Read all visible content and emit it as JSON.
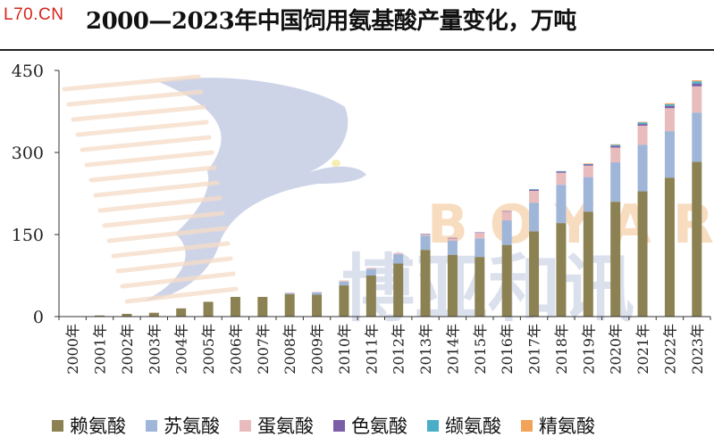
{
  "brand": "L70.CN",
  "title": "2000—2023年中国饲用氨基酸产量变化，万吨",
  "watermark": {
    "latin": "BOYAR",
    "chinese": "博亚和讯"
  },
  "colors": {
    "lysine": "#8b8152",
    "threonine": "#9fb6d9",
    "methionine": "#e8bcbc",
    "tryptophan": "#7b5ea6",
    "valine": "#4aaec8",
    "arginine": "#f2a35a",
    "watermark_bird": "#c6cde4",
    "watermark_text": "#f8dcc0",
    "watermark_cn": "#cfd6e8"
  },
  "chart_data": {
    "type": "bar",
    "stacked": true,
    "title": "2000—2023年中国饲用氨基酸产量变化，万吨",
    "xlabel": "",
    "ylabel": "",
    "ylim": [
      0,
      450
    ],
    "yticks": [
      "0",
      "150",
      "300",
      "450"
    ],
    "grid": false,
    "legend_position": "bottom",
    "categories": [
      "2000年",
      "2001年",
      "2002年",
      "2003年",
      "2004年",
      "2005年",
      "2006年",
      "2007年",
      "2008年",
      "2009年",
      "2010年",
      "2011年",
      "2012年",
      "2013年",
      "2014年",
      "2015年",
      "2016年",
      "2017年",
      "2018年",
      "2019年",
      "2020年",
      "2021年",
      "2022年",
      "2023年"
    ],
    "series": [
      {
        "name": "赖氨酸",
        "key": "lysine",
        "values": [
          0.5,
          2,
          5,
          7,
          15,
          27,
          36,
          36,
          41,
          40,
          57,
          75,
          97,
          122,
          113,
          109,
          131,
          156,
          171,
          192,
          210,
          229,
          254,
          283
        ]
      },
      {
        "name": "苏氨酸",
        "key": "threonine",
        "values": [
          0,
          0,
          0,
          0,
          0,
          0,
          0,
          0,
          2,
          4,
          7,
          12,
          17,
          26,
          26,
          34,
          45,
          52,
          70,
          63,
          72,
          85,
          85,
          90
        ]
      },
      {
        "name": "蛋氨酸",
        "key": "methionine",
        "values": [
          0,
          0,
          0,
          0,
          0,
          0,
          0,
          0,
          1,
          1,
          2,
          2,
          2,
          2,
          4,
          10,
          16,
          22,
          22,
          21,
          27,
          35,
          42,
          48
        ]
      },
      {
        "name": "色氨酸",
        "key": "tryptophan",
        "values": [
          0,
          0,
          0,
          0,
          0,
          0,
          0,
          0,
          0,
          0,
          0,
          0,
          0,
          1,
          1,
          1,
          1,
          2,
          2,
          2,
          3,
          3,
          4,
          5
        ]
      },
      {
        "name": "缬氨酸",
        "key": "valine",
        "values": [
          0,
          0,
          0,
          0,
          0,
          0,
          0,
          0,
          0,
          0,
          0,
          0,
          0,
          0,
          0,
          0,
          0,
          1,
          1,
          1,
          2,
          3,
          3,
          4
        ]
      },
      {
        "name": "精氨酸",
        "key": "arginine",
        "values": [
          0,
          0,
          0,
          0,
          0,
          0,
          0,
          0,
          0,
          0,
          0,
          0,
          0,
          0,
          0,
          0,
          0,
          0,
          0,
          1,
          1,
          1,
          2,
          2
        ]
      }
    ]
  }
}
